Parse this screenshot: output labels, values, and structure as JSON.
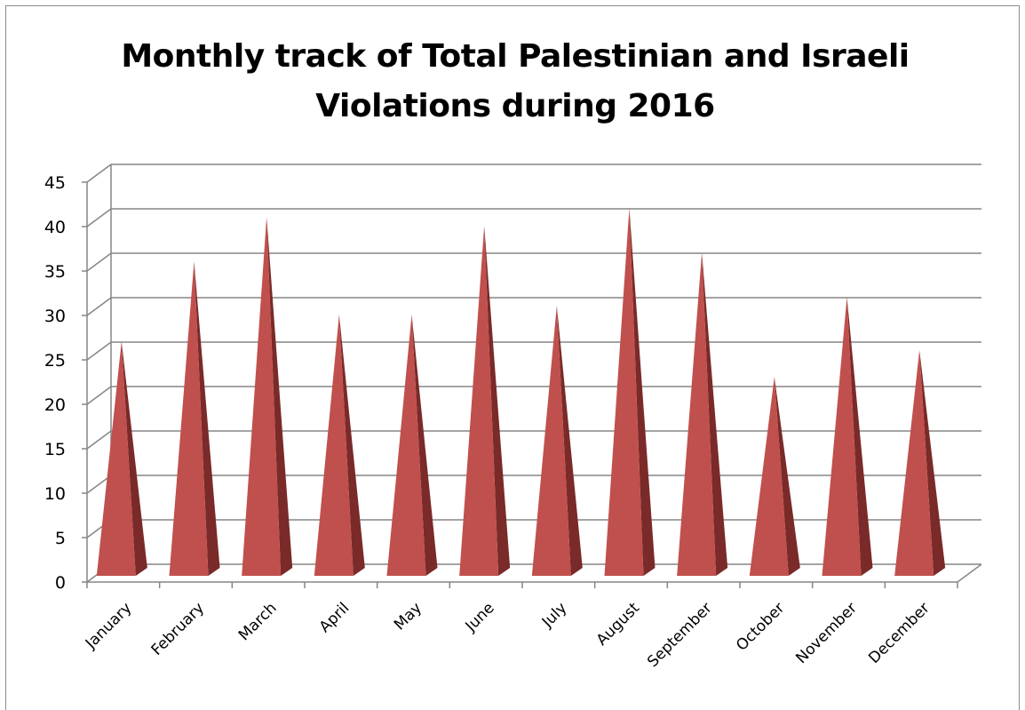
{
  "chart_data": {
    "type": "bar",
    "shape": "3d-pyramid",
    "title": "Monthly track of Total Palestinian and Israeli Violations during 2016",
    "xlabel": "",
    "ylabel": "",
    "categories": [
      "January",
      "February",
      "March",
      "April",
      "May",
      "June",
      "July",
      "August",
      "September",
      "October",
      "November",
      "December"
    ],
    "values": [
      26,
      35,
      40,
      29,
      29,
      39,
      30,
      41,
      36,
      22,
      31,
      25
    ],
    "ylim": [
      0,
      45
    ],
    "yticks": [
      "0",
      "5",
      "10",
      "15",
      "20",
      "25",
      "30",
      "35",
      "40",
      "45"
    ],
    "grid": true,
    "legend": "none",
    "colors": {
      "front": "#c0504d",
      "side": "#7a2a28",
      "grid": "#868686",
      "axis": "#868686"
    }
  }
}
